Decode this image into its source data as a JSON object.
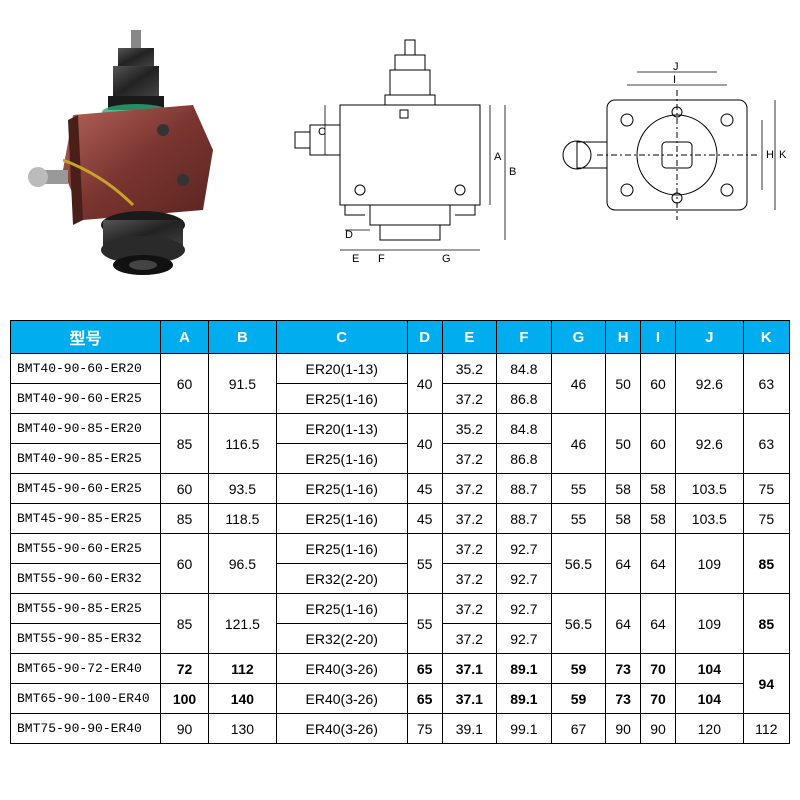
{
  "headers": [
    "型号",
    "A",
    "B",
    "C",
    "D",
    "E",
    "F",
    "G",
    "H",
    "I",
    "J",
    "K"
  ],
  "colors": {
    "header_bg": "#00aeef",
    "header_fg": "#ffffff",
    "border": "#000000"
  },
  "rows": [
    {
      "model": "BMT40-90-60-ER20",
      "A": "60",
      "Ars": 2,
      "B": "91.5",
      "Brs": 2,
      "C": "ER20(1-13)",
      "D": "40",
      "Drs": 2,
      "E": "35.2",
      "F": "84.8",
      "G": "46",
      "Grs": 2,
      "H": "50",
      "Hrs": 2,
      "I": "60",
      "Irs": 2,
      "J": "92.6",
      "Jrs": 2,
      "K": "63",
      "Krs": 2
    },
    {
      "model": "BMT40-90-60-ER25",
      "C": "ER25(1-16)",
      "E": "37.2",
      "F": "86.8"
    },
    {
      "model": "BMT40-90-85-ER20",
      "A": "85",
      "Ars": 2,
      "B": "116.5",
      "Brs": 2,
      "C": "ER20(1-13)",
      "D": "40",
      "Drs": 2,
      "E": "35.2",
      "F": "84.8",
      "G": "46",
      "Grs": 2,
      "H": "50",
      "Hrs": 2,
      "I": "60",
      "Irs": 2,
      "J": "92.6",
      "Jrs": 2,
      "K": "63",
      "Krs": 2
    },
    {
      "model": "BMT40-90-85-ER25",
      "C": "ER25(1-16)",
      "E": "37.2",
      "F": "86.8"
    },
    {
      "model": "BMT45-90-60-ER25",
      "A": "60",
      "B": "93.5",
      "C": "ER25(1-16)",
      "D": "45",
      "E": "37.2",
      "F": "88.7",
      "G": "55",
      "H": "58",
      "I": "58",
      "J": "103.5",
      "K": "75"
    },
    {
      "model": "BMT45-90-85-ER25",
      "A": "85",
      "B": "118.5",
      "C": "ER25(1-16)",
      "D": "45",
      "E": "37.2",
      "F": "88.7",
      "G": "55",
      "H": "58",
      "I": "58",
      "J": "103.5",
      "K": "75"
    },
    {
      "model": "BMT55-90-60-ER25",
      "A": "60",
      "Ars": 2,
      "B": "96.5",
      "Brs": 2,
      "C": "ER25(1-16)",
      "D": "55",
      "Drs": 2,
      "E": "37.2",
      "F": "92.7",
      "G": "56.5",
      "Grs": 2,
      "H": "64",
      "Hrs": 2,
      "I": "64",
      "Irs": 2,
      "J": "109",
      "Jrs": 2,
      "K": "85",
      "Krs": 2,
      "Kbold": true
    },
    {
      "model": "BMT55-90-60-ER32",
      "C": "ER32(2-20)",
      "E": "37.2",
      "F": "92.7"
    },
    {
      "model": "BMT55-90-85-ER25",
      "A": "85",
      "Ars": 2,
      "B": "121.5",
      "Brs": 2,
      "C": "ER25(1-16)",
      "D": "55",
      "Drs": 2,
      "E": "37.2",
      "F": "92.7",
      "G": "56.5",
      "Grs": 2,
      "H": "64",
      "Hrs": 2,
      "I": "64",
      "Irs": 2,
      "J": "109",
      "Jrs": 2,
      "K": "85",
      "Krs": 2,
      "Kbold": true
    },
    {
      "model": "BMT55-90-85-ER32",
      "C": "ER32(2-20)",
      "E": "37.2",
      "F": "92.7"
    },
    {
      "model": "BMT65-90-72-ER40",
      "A": "72",
      "B": "112",
      "C": "ER40(3-26)",
      "D": "65",
      "E": "37.1",
      "F": "89.1",
      "G": "59",
      "H": "73",
      "I": "70",
      "J": "104",
      "K": "94",
      "Krs": 2,
      "bold": true,
      "Kbold": true
    },
    {
      "model": "BMT65-90-100-ER40",
      "A": "100",
      "B": "140",
      "C": "ER40(3-26)",
      "D": "65",
      "E": "37.1",
      "F": "89.1",
      "G": "59",
      "H": "73",
      "I": "70",
      "J": "104",
      "bold": true
    },
    {
      "model": "BMT75-90-90-ER40",
      "A": "90",
      "B": "130",
      "C": "ER40(3-26)",
      "D": "75",
      "E": "39.1",
      "F": "99.1",
      "G": "67",
      "H": "90",
      "I": "90",
      "J": "120",
      "K": "112"
    }
  ]
}
